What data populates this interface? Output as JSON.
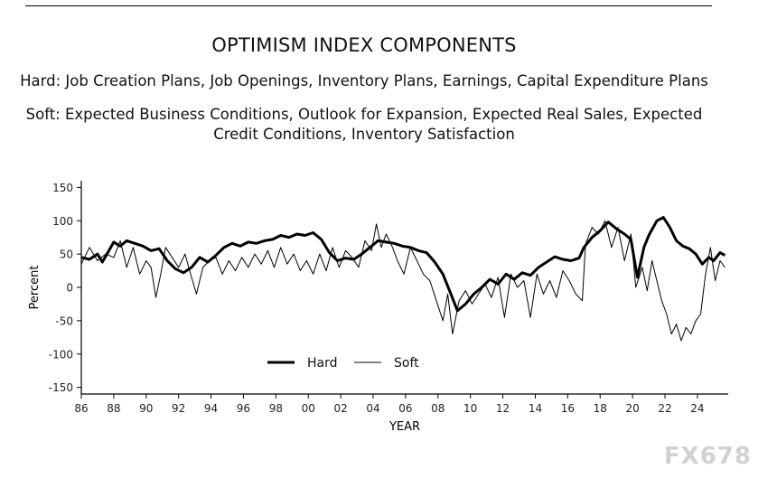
{
  "header": {
    "title": "OPTIMISM INDEX COMPONENTS",
    "hard_line": "Hard: Job Creation Plans, Job Openings, Inventory Plans, Earnings, Capital Expenditure Plans",
    "soft_line_1": "Soft: Expected Business Conditions, Outlook for Expansion, Expected Real Sales, Expected",
    "soft_line_2": "Credit Conditions, Inventory Satisfaction"
  },
  "watermark": "FX678",
  "chart_data": {
    "type": "line",
    "title": "OPTIMISM INDEX COMPONENTS",
    "xlabel": "YEAR",
    "ylabel": "Percent",
    "xlim": [
      1986,
      2025.9
    ],
    "ylim": [
      -160,
      160
    ],
    "yticks": [
      150,
      100,
      50,
      0,
      -50,
      -100,
      -150
    ],
    "xticks": [
      1986,
      1988,
      1990,
      1992,
      1994,
      1996,
      1998,
      2000,
      2002,
      2004,
      2006,
      2008,
      2010,
      2012,
      2014,
      2016,
      2018,
      2020,
      2022,
      2024
    ],
    "xtick_labels": [
      "86",
      "88",
      "90",
      "92",
      "94",
      "96",
      "98",
      "00",
      "02",
      "04",
      "06",
      "08",
      "10",
      "12",
      "14",
      "16",
      "18",
      "20",
      "22",
      "24"
    ],
    "grid": false,
    "legend": "bottom-center",
    "series": [
      {
        "name": "Hard",
        "style": "thick",
        "points": [
          [
            1986,
            45
          ],
          [
            1986.5,
            42
          ],
          [
            1987,
            50
          ],
          [
            1987.3,
            38
          ],
          [
            1987.7,
            55
          ],
          [
            1988,
            68
          ],
          [
            1988.4,
            62
          ],
          [
            1988.8,
            70
          ],
          [
            1989.3,
            66
          ],
          [
            1989.8,
            62
          ],
          [
            1990.3,
            55
          ],
          [
            1990.8,
            58
          ],
          [
            1991.3,
            40
          ],
          [
            1991.8,
            28
          ],
          [
            1992.3,
            22
          ],
          [
            1992.8,
            30
          ],
          [
            1993.3,
            45
          ],
          [
            1993.8,
            38
          ],
          [
            1994.3,
            48
          ],
          [
            1994.8,
            60
          ],
          [
            1995.3,
            66
          ],
          [
            1995.8,
            62
          ],
          [
            1996.3,
            68
          ],
          [
            1996.8,
            66
          ],
          [
            1997.3,
            70
          ],
          [
            1997.8,
            72
          ],
          [
            1998.3,
            78
          ],
          [
            1998.8,
            75
          ],
          [
            1999.3,
            80
          ],
          [
            1999.8,
            78
          ],
          [
            2000.3,
            82
          ],
          [
            2000.8,
            72
          ],
          [
            2001.3,
            52
          ],
          [
            2001.8,
            40
          ],
          [
            2002.3,
            44
          ],
          [
            2002.8,
            42
          ],
          [
            2003.3,
            50
          ],
          [
            2003.8,
            60
          ],
          [
            2004.3,
            70
          ],
          [
            2004.8,
            68
          ],
          [
            2005.3,
            66
          ],
          [
            2005.8,
            62
          ],
          [
            2006.3,
            60
          ],
          [
            2006.8,
            55
          ],
          [
            2007.3,
            52
          ],
          [
            2007.8,
            38
          ],
          [
            2008.3,
            20
          ],
          [
            2008.8,
            -10
          ],
          [
            2009.2,
            -35
          ],
          [
            2009.7,
            -25
          ],
          [
            2010.2,
            -10
          ],
          [
            2010.7,
            0
          ],
          [
            2011.2,
            12
          ],
          [
            2011.7,
            5
          ],
          [
            2012.2,
            20
          ],
          [
            2012.7,
            12
          ],
          [
            2013.2,
            22
          ],
          [
            2013.7,
            18
          ],
          [
            2014.2,
            30
          ],
          [
            2014.7,
            38
          ],
          [
            2015.2,
            46
          ],
          [
            2015.7,
            42
          ],
          [
            2016.2,
            40
          ],
          [
            2016.7,
            44
          ],
          [
            2017.0,
            60
          ],
          [
            2017.5,
            75
          ],
          [
            2018.0,
            85
          ],
          [
            2018.5,
            98
          ],
          [
            2019.0,
            88
          ],
          [
            2019.5,
            80
          ],
          [
            2019.9,
            72
          ],
          [
            2020.3,
            15
          ],
          [
            2020.7,
            60
          ],
          [
            2021.0,
            78
          ],
          [
            2021.5,
            100
          ],
          [
            2021.9,
            105
          ],
          [
            2022.3,
            90
          ],
          [
            2022.7,
            70
          ],
          [
            2023.1,
            62
          ],
          [
            2023.5,
            58
          ],
          [
            2023.9,
            50
          ],
          [
            2024.3,
            35
          ],
          [
            2024.7,
            45
          ],
          [
            2025.0,
            40
          ],
          [
            2025.4,
            52
          ],
          [
            2025.7,
            48
          ]
        ]
      },
      {
        "name": "Soft",
        "style": "thin",
        "points": [
          [
            1986,
            35
          ],
          [
            1986.5,
            60
          ],
          [
            1987,
            40
          ],
          [
            1987.5,
            50
          ],
          [
            1988,
            45
          ],
          [
            1988.4,
            70
          ],
          [
            1988.8,
            30
          ],
          [
            1989.2,
            60
          ],
          [
            1989.6,
            20
          ],
          [
            1990.0,
            40
          ],
          [
            1990.3,
            30
          ],
          [
            1990.6,
            -15
          ],
          [
            1990.9,
            20
          ],
          [
            1991.2,
            60
          ],
          [
            1991.6,
            45
          ],
          [
            1992.0,
            30
          ],
          [
            1992.4,
            50
          ],
          [
            1992.8,
            15
          ],
          [
            1993.1,
            -10
          ],
          [
            1993.5,
            30
          ],
          [
            1993.9,
            40
          ],
          [
            1994.3,
            45
          ],
          [
            1994.7,
            20
          ],
          [
            1995.1,
            40
          ],
          [
            1995.5,
            25
          ],
          [
            1995.9,
            45
          ],
          [
            1996.3,
            30
          ],
          [
            1996.7,
            50
          ],
          [
            1997.1,
            35
          ],
          [
            1997.5,
            55
          ],
          [
            1997.9,
            30
          ],
          [
            1998.3,
            60
          ],
          [
            1998.7,
            35
          ],
          [
            1999.1,
            50
          ],
          [
            1999.5,
            25
          ],
          [
            1999.9,
            40
          ],
          [
            2000.3,
            20
          ],
          [
            2000.7,
            50
          ],
          [
            2001.1,
            25
          ],
          [
            2001.5,
            60
          ],
          [
            2001.9,
            30
          ],
          [
            2002.3,
            55
          ],
          [
            2002.7,
            45
          ],
          [
            2003.1,
            30
          ],
          [
            2003.5,
            70
          ],
          [
            2003.9,
            55
          ],
          [
            2004.2,
            95
          ],
          [
            2004.5,
            60
          ],
          [
            2004.8,
            80
          ],
          [
            2005.2,
            60
          ],
          [
            2005.5,
            40
          ],
          [
            2005.9,
            20
          ],
          [
            2006.3,
            60
          ],
          [
            2006.7,
            40
          ],
          [
            2007.1,
            20
          ],
          [
            2007.5,
            10
          ],
          [
            2007.9,
            -20
          ],
          [
            2008.3,
            -50
          ],
          [
            2008.6,
            -10
          ],
          [
            2008.9,
            -70
          ],
          [
            2009.3,
            -20
          ],
          [
            2009.7,
            -5
          ],
          [
            2010.1,
            -25
          ],
          [
            2010.5,
            -10
          ],
          [
            2010.9,
            5
          ],
          [
            2011.3,
            -15
          ],
          [
            2011.7,
            15
          ],
          [
            2012.1,
            -45
          ],
          [
            2012.5,
            20
          ],
          [
            2012.9,
            0
          ],
          [
            2013.3,
            10
          ],
          [
            2013.7,
            -45
          ],
          [
            2014.1,
            20
          ],
          [
            2014.5,
            -10
          ],
          [
            2014.9,
            10
          ],
          [
            2015.3,
            -15
          ],
          [
            2015.7,
            25
          ],
          [
            2016.1,
            10
          ],
          [
            2016.5,
            -10
          ],
          [
            2016.9,
            -20
          ],
          [
            2017.1,
            65
          ],
          [
            2017.5,
            90
          ],
          [
            2017.9,
            80
          ],
          [
            2018.3,
            100
          ],
          [
            2018.7,
            60
          ],
          [
            2019.1,
            90
          ],
          [
            2019.5,
            40
          ],
          [
            2019.9,
            80
          ],
          [
            2020.2,
            0
          ],
          [
            2020.6,
            30
          ],
          [
            2020.9,
            -5
          ],
          [
            2021.2,
            40
          ],
          [
            2021.5,
            10
          ],
          [
            2021.8,
            -20
          ],
          [
            2022.1,
            -40
          ],
          [
            2022.4,
            -70
          ],
          [
            2022.7,
            -55
          ],
          [
            2023.0,
            -80
          ],
          [
            2023.3,
            -60
          ],
          [
            2023.6,
            -70
          ],
          [
            2023.9,
            -50
          ],
          [
            2024.2,
            -40
          ],
          [
            2024.5,
            20
          ],
          [
            2024.8,
            60
          ],
          [
            2025.1,
            10
          ],
          [
            2025.4,
            40
          ],
          [
            2025.7,
            30
          ]
        ]
      }
    ]
  }
}
